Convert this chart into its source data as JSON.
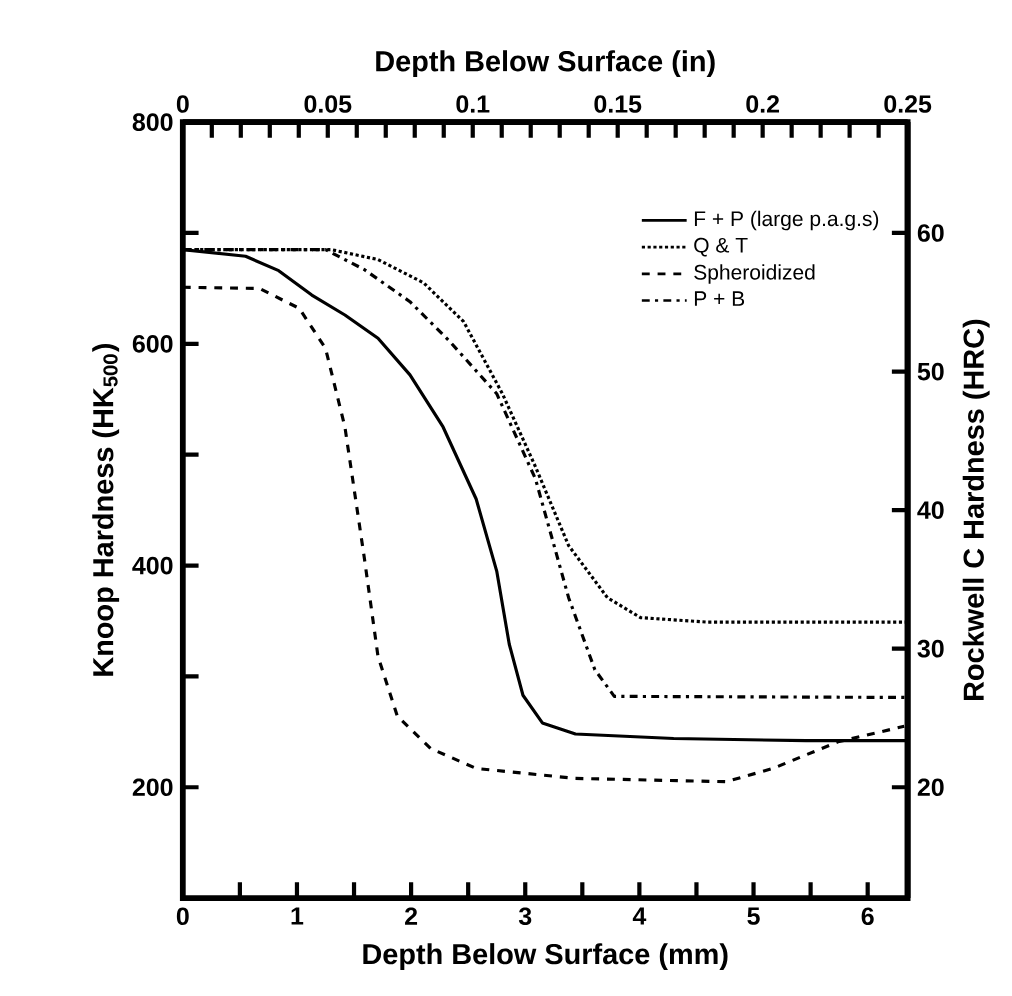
{
  "chart_data": {
    "type": "line",
    "xlabel": "Depth Below Surface (mm)",
    "x2label": "Depth Below Surface (in)",
    "ylabel": "Knoop Hardness (HK$_{500}$)",
    "y2label": "Rockwell C Hardness (HRC)",
    "xlim": [
      0,
      6.35
    ],
    "xticks": [
      0,
      {
        "value": 0.5,
        "label": null
      },
      1,
      {
        "value": 1.5,
        "label": null
      },
      2,
      {
        "value": 2.5,
        "label": null
      },
      3,
      {
        "value": 3.5,
        "label": null
      },
      4,
      {
        "value": 4.5,
        "label": null
      },
      5,
      {
        "value": 5.5,
        "label": null
      },
      6
    ],
    "x2lim": [
      0,
      0.25
    ],
    "x2ticks": [
      0,
      {
        "value": 0.01,
        "label": null
      },
      {
        "value": 0.02,
        "label": null
      },
      {
        "value": 0.03,
        "label": null
      },
      {
        "value": 0.04,
        "label": null
      },
      0.05,
      {
        "value": 0.06,
        "label": null
      },
      {
        "value": 0.07,
        "label": null
      },
      {
        "value": 0.08,
        "label": null
      },
      {
        "value": 0.09,
        "label": null
      },
      0.1,
      {
        "value": 0.11,
        "label": null
      },
      {
        "value": 0.12,
        "label": null
      },
      {
        "value": 0.13,
        "label": null
      },
      {
        "value": 0.14,
        "label": null
      },
      0.15,
      {
        "value": 0.16,
        "label": null
      },
      {
        "value": 0.17,
        "label": null
      },
      {
        "value": 0.18,
        "label": null
      },
      {
        "value": 0.19,
        "label": null
      },
      0.2,
      {
        "value": 0.21,
        "label": null
      },
      {
        "value": 0.22,
        "label": null
      },
      {
        "value": 0.23,
        "label": null
      },
      {
        "value": 0.24,
        "label": null
      },
      0.25
    ],
    "ylim": [
      100,
      800
    ],
    "yticks": [
      200,
      {
        "value": 300,
        "label": null
      },
      400,
      {
        "value": 500,
        "label": null
      },
      600,
      {
        "value": 700,
        "label": null
      },
      800
    ],
    "y2lim": [
      12,
      68
    ],
    "y2ticks": [
      20,
      30,
      40,
      50,
      60
    ],
    "legend": "top right",
    "series": [
      {
        "name": "F + P (large p.a.g.s)",
        "color": "#000000",
        "line_style": "solid",
        "x": [
          0,
          0.55,
          0.84,
          1.13,
          1.42,
          1.71,
          1.99,
          2.28,
          2.57,
          2.75,
          2.86,
          2.98,
          3.15,
          3.44,
          4.3,
          5.46,
          6.35
        ],
        "values": [
          685,
          679,
          666,
          644,
          626,
          605,
          572,
          525,
          460,
          395,
          329,
          283,
          258,
          248,
          244,
          242,
          242
        ]
      },
      {
        "name": "Q & T",
        "color": "#000000",
        "line_style": "dotted",
        "x": [
          0,
          1.3,
          1.71,
          2.11,
          2.46,
          2.8,
          3.09,
          3.38,
          3.72,
          4.01,
          4.59,
          6.35
        ],
        "values": [
          685,
          685,
          676,
          655,
          620,
          555,
          489,
          418,
          371,
          353,
          349,
          349
        ]
      },
      {
        "name": "Spheroidized",
        "color": "#000000",
        "line_style": "dashed",
        "x": [
          0,
          0.67,
          1.02,
          1.25,
          1.42,
          1.59,
          1.71,
          1.88,
          2.17,
          2.57,
          3.44,
          4.76,
          5.17,
          5.74,
          6.32
        ],
        "values": [
          651,
          650,
          632,
          596,
          525,
          407,
          318,
          264,
          235,
          217,
          208,
          205,
          217,
          241,
          255
        ]
      },
      {
        "name": "P + B",
        "color": "#000000",
        "line_style": "dashdot",
        "x": [
          0,
          1.25,
          1.59,
          1.99,
          2.34,
          2.75,
          3.09,
          3.38,
          3.61,
          3.78,
          6.35
        ],
        "values": [
          685,
          685,
          667,
          638,
          602,
          555,
          478,
          371,
          306,
          282,
          281
        ]
      }
    ]
  }
}
